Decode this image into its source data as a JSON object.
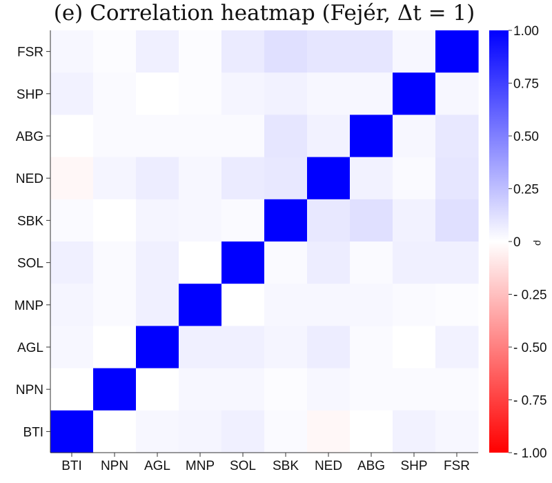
{
  "chart_data": {
    "type": "heatmap",
    "title": "(e) Correlation heatmap (Fejér, Δt = 1)",
    "x_categories": [
      "BTI",
      "NPN",
      "AGL",
      "MNP",
      "SOL",
      "SBK",
      "NED",
      "ABG",
      "SHP",
      "FSR"
    ],
    "y_categories_top_to_bottom": [
      "FSR",
      "SHP",
      "ABG",
      "NED",
      "SBK",
      "SOL",
      "MNP",
      "AGL",
      "NPN",
      "BTI"
    ],
    "values_top_to_bottom": [
      [
        0.03,
        0.01,
        0.06,
        0.01,
        0.08,
        0.12,
        0.1,
        0.1,
        0.03,
        1.0
      ],
      [
        0.05,
        0.02,
        0.0,
        0.01,
        0.04,
        0.05,
        0.03,
        0.03,
        1.0,
        0.03
      ],
      [
        0.0,
        0.02,
        0.02,
        0.02,
        0.02,
        0.1,
        0.05,
        1.0,
        0.03,
        0.09
      ],
      [
        -0.03,
        0.04,
        0.07,
        0.03,
        0.08,
        0.09,
        1.0,
        0.05,
        0.02,
        0.1
      ],
      [
        0.02,
        0.0,
        0.04,
        0.03,
        0.02,
        1.0,
        0.09,
        0.12,
        0.05,
        0.12
      ],
      [
        0.06,
        0.02,
        0.06,
        0.0,
        1.0,
        0.02,
        0.07,
        0.02,
        0.06,
        0.06
      ],
      [
        0.04,
        0.02,
        0.06,
        1.0,
        0.0,
        0.03,
        0.03,
        0.03,
        0.02,
        0.01
      ],
      [
        0.03,
        0.0,
        1.0,
        0.06,
        0.06,
        0.04,
        0.07,
        0.02,
        0.0,
        0.05
      ],
      [
        0.0,
        1.0,
        0.0,
        0.03,
        0.03,
        0.01,
        0.03,
        0.02,
        0.02,
        0.02
      ],
      [
        1.0,
        0.0,
        0.03,
        0.04,
        0.06,
        0.02,
        -0.03,
        0.0,
        0.05,
        0.03
      ]
    ],
    "colorbar": {
      "min": -1.0,
      "max": 1.0,
      "ticks": [
        1.0,
        0.75,
        0.5,
        0.25,
        0,
        -0.25,
        -0.5,
        -0.75,
        -1.0
      ],
      "tick_labels": [
        "1.00",
        "0.75",
        "0.50",
        "0.25",
        "0",
        "- 0.25",
        "- 0.50",
        "- 0.75",
        "- 1.00"
      ],
      "label": "ρ",
      "colors": {
        "negative": "#ff0000",
        "zero": "#ffffff",
        "positive": "#0000ff"
      }
    }
  }
}
